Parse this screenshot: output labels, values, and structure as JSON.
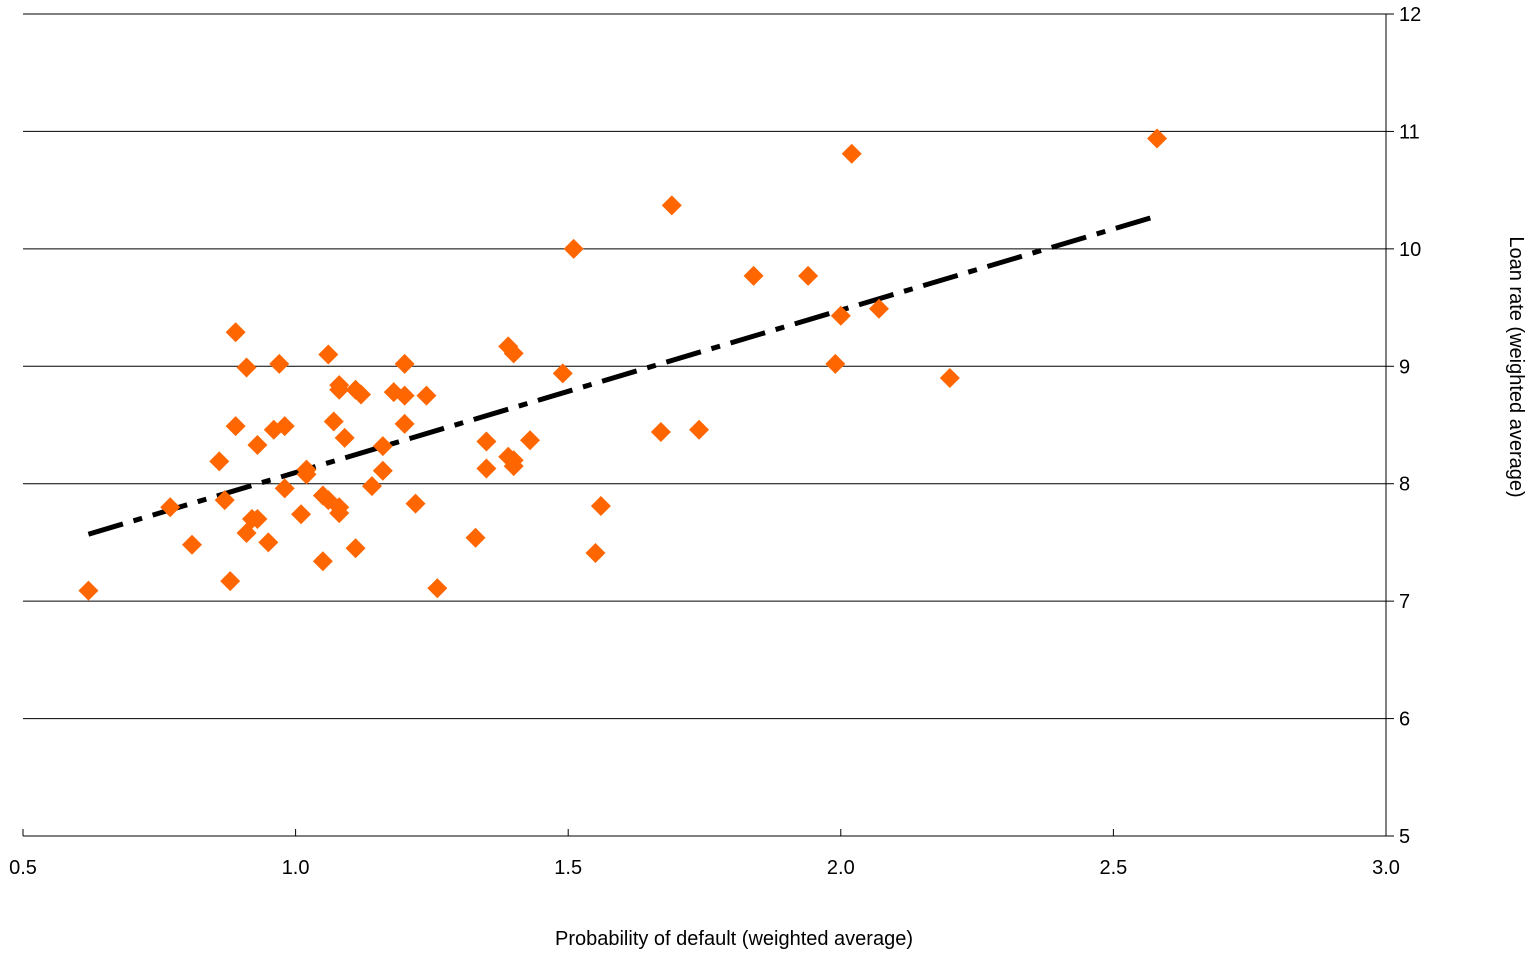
{
  "chart_data": {
    "type": "scatter",
    "title": "",
    "xlabel": "Probability of default (weighted average)",
    "ylabel": "Loan rate (weighted average)",
    "xlim": [
      0.5,
      3.0
    ],
    "ylim": [
      5,
      12
    ],
    "x_ticks": [
      "0.5",
      "1.0",
      "1.5",
      "2.0",
      "2.5",
      "3.0"
    ],
    "y_ticks": [
      "5",
      "6",
      "7",
      "8",
      "9",
      "10",
      "11",
      "12"
    ],
    "y_axis_side": "right",
    "grid": "horizontal",
    "legend": "none",
    "colors": {
      "points": "#ff6600",
      "trend": "#000000",
      "grid": "#000000"
    },
    "series": [
      {
        "marker": "diamond",
        "x": [
          0.62,
          0.77,
          0.81,
          0.86,
          0.87,
          0.88,
          0.89,
          0.89,
          0.91,
          0.91,
          0.92,
          0.93,
          0.93,
          0.95,
          0.96,
          0.97,
          0.98,
          0.98,
          1.01,
          1.02,
          1.02,
          1.05,
          1.05,
          1.06,
          1.06,
          1.07,
          1.08,
          1.08,
          1.08,
          1.08,
          1.09,
          1.11,
          1.11,
          1.12,
          1.14,
          1.16,
          1.16,
          1.18,
          1.2,
          1.2,
          1.2,
          1.22,
          1.24,
          1.26,
          1.33,
          1.35,
          1.35,
          1.39,
          1.39,
          1.4,
          1.4,
          1.4,
          1.43,
          1.49,
          1.51,
          1.55,
          1.56,
          1.67,
          1.69,
          1.74,
          1.84,
          1.94,
          1.99,
          2.0,
          2.02,
          2.07,
          2.2,
          2.58
        ],
        "y": [
          7.09,
          7.8,
          7.48,
          8.19,
          7.86,
          7.17,
          9.29,
          8.49,
          8.99,
          7.58,
          7.7,
          8.33,
          7.7,
          7.5,
          8.46,
          9.02,
          7.96,
          8.49,
          7.74,
          8.08,
          8.12,
          7.34,
          7.9,
          9.1,
          7.86,
          8.53,
          8.84,
          8.8,
          7.8,
          7.75,
          8.39,
          7.45,
          8.8,
          8.76,
          7.98,
          8.32,
          8.11,
          8.78,
          9.02,
          8.75,
          8.51,
          7.83,
          8.75,
          7.11,
          7.54,
          8.36,
          8.13,
          9.17,
          8.23,
          8.15,
          9.11,
          8.2,
          8.37,
          8.94,
          10.0,
          7.41,
          7.81,
          8.44,
          10.37,
          8.46,
          9.77,
          9.77,
          9.02,
          9.43,
          10.81,
          9.49,
          8.9,
          10.94
        ]
      }
    ],
    "trendline": {
      "style": "dash-dot",
      "x": [
        0.62,
        2.58
      ],
      "y": [
        7.57,
        10.28
      ]
    }
  }
}
